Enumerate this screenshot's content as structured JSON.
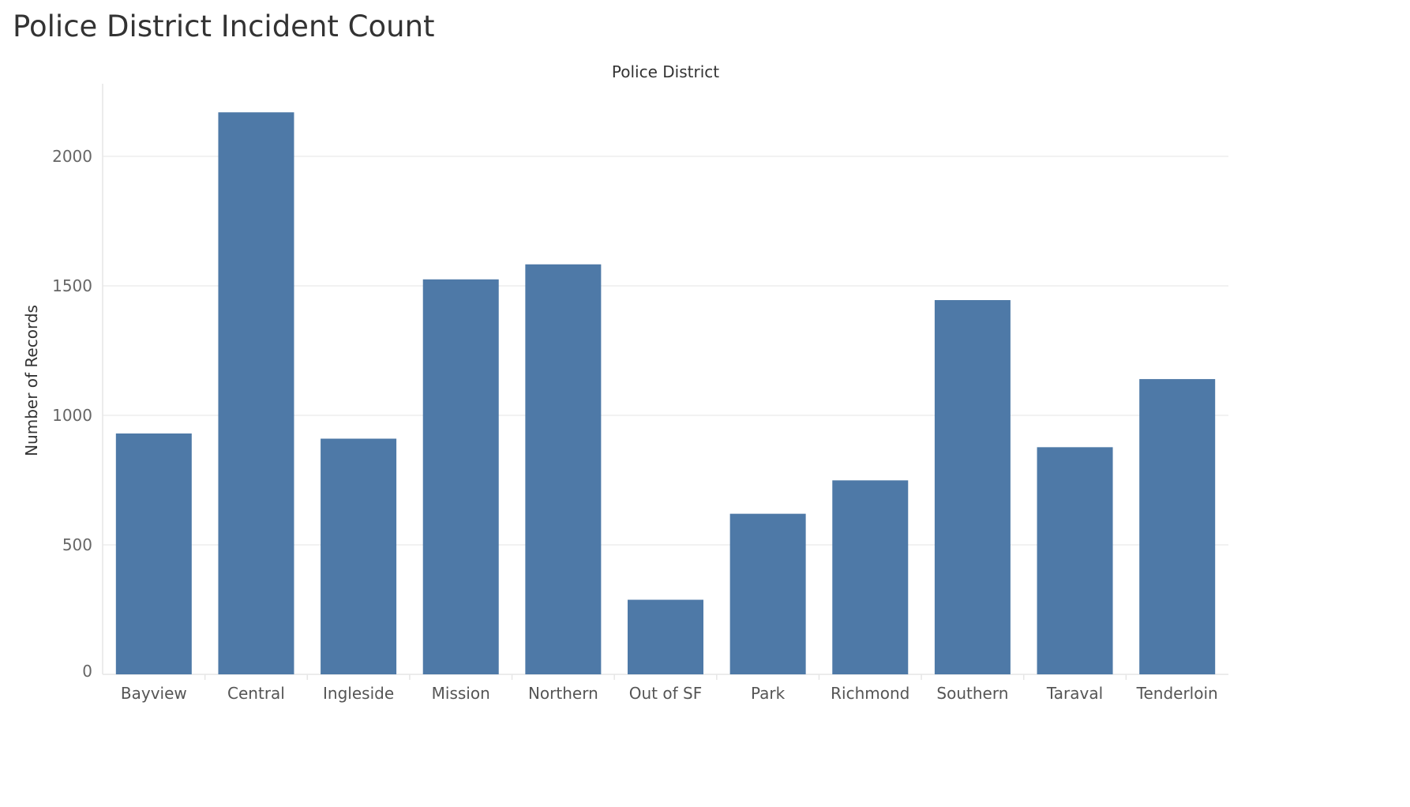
{
  "page": {
    "title": "Police District Incident Count"
  },
  "chart_data": {
    "type": "bar",
    "title": "Police District Incident Count",
    "column_header": "Police District",
    "xlabel": "",
    "ylabel": "Number of Records",
    "ylim": [
      0,
      2270
    ],
    "yticks": [
      0,
      500,
      1000,
      1500,
      2000
    ],
    "grid": true,
    "legend": "none",
    "bar_color": "#4e79a7",
    "categories": [
      "Bayview",
      "Central",
      "Ingleside",
      "Mission",
      "Northern",
      "Out of SF",
      "Park",
      "Richmond",
      "Southern",
      "Taraval",
      "Tenderloin"
    ],
    "values": [
      930,
      2170,
      910,
      1525,
      1583,
      288,
      620,
      749,
      1445,
      877,
      1140
    ]
  }
}
